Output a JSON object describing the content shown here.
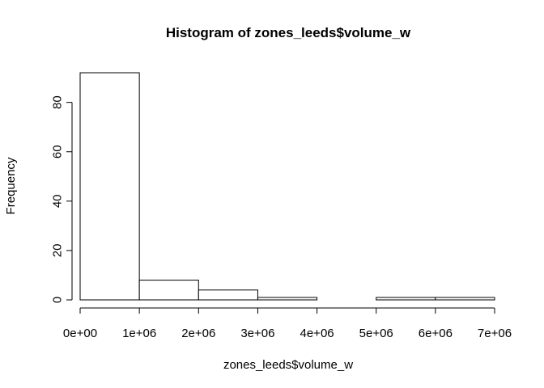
{
  "chart_data": {
    "type": "bar",
    "title": "Histogram of zones_leeds$volume_w",
    "xlabel": "zones_leeds$volume_w",
    "ylabel": "Frequency",
    "bins": [
      {
        "from": 0,
        "to": 1000000,
        "count": 92
      },
      {
        "from": 1000000,
        "to": 2000000,
        "count": 8
      },
      {
        "from": 2000000,
        "to": 3000000,
        "count": 4
      },
      {
        "from": 3000000,
        "to": 4000000,
        "count": 1
      },
      {
        "from": 4000000,
        "to": 5000000,
        "count": 0
      },
      {
        "from": 5000000,
        "to": 6000000,
        "count": 1
      },
      {
        "from": 6000000,
        "to": 7000000,
        "count": 1
      }
    ],
    "xlim": [
      0,
      7000000
    ],
    "ylim": [
      0,
      92
    ],
    "x_ticks": [
      0,
      1000000,
      2000000,
      3000000,
      4000000,
      5000000,
      6000000,
      7000000
    ],
    "x_tick_labels": [
      "0e+00",
      "1e+06",
      "2e+06",
      "3e+06",
      "4e+06",
      "5e+06",
      "6e+06",
      "7e+06"
    ],
    "y_ticks": [
      0,
      20,
      40,
      60,
      80
    ],
    "y_tick_labels": [
      "0",
      "20",
      "40",
      "60",
      "80"
    ],
    "grid": false,
    "legend": "none"
  }
}
